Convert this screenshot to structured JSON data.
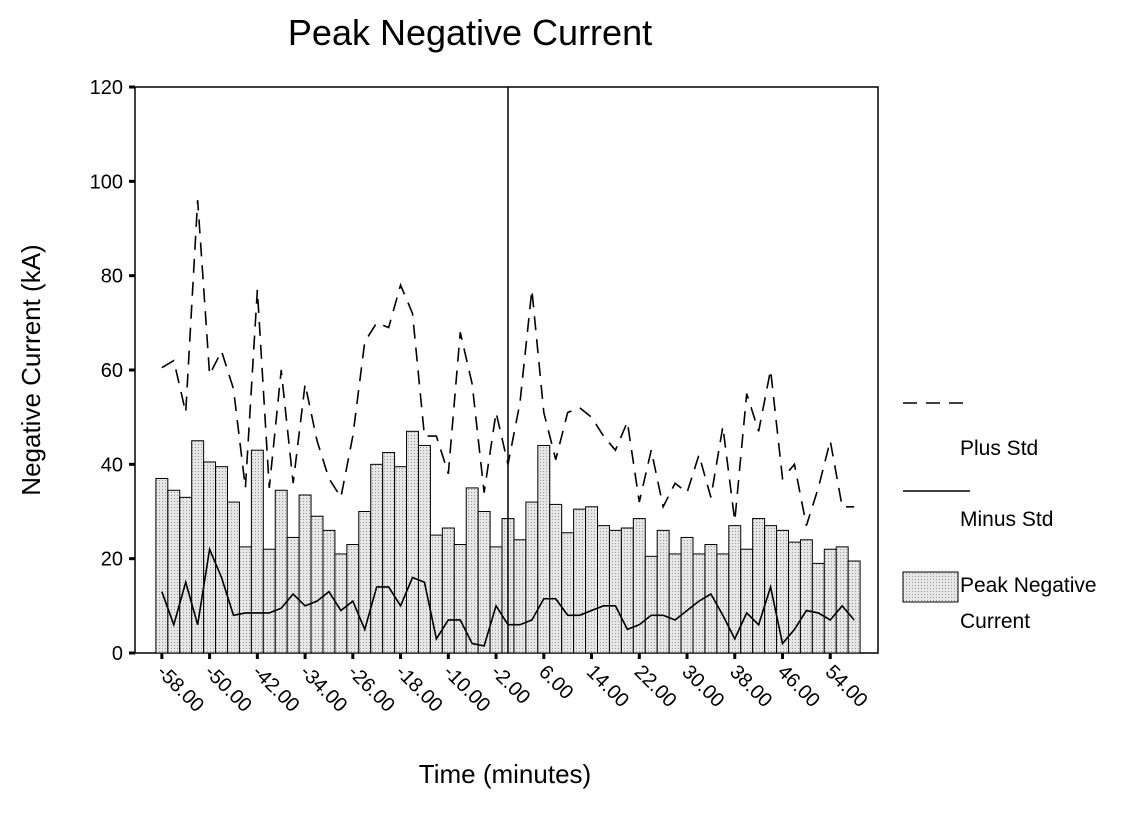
{
  "chart_data": {
    "type": "bar",
    "title": "Peak Negative Current",
    "xlabel": "Time (minutes)",
    "ylabel": "Negative Current (kA)",
    "x": [
      -58,
      -56,
      -54,
      -52,
      -50,
      -48,
      -46,
      -44,
      -42,
      -40,
      -38,
      -36,
      -34,
      -32,
      -30,
      -28,
      -26,
      -24,
      -22,
      -20,
      -18,
      -16,
      -14,
      -12,
      -10,
      -8,
      -6,
      -4,
      -2,
      0,
      2,
      4,
      6,
      8,
      10,
      12,
      14,
      16,
      18,
      20,
      22,
      24,
      26,
      28,
      30,
      32,
      34,
      36,
      38,
      40,
      42,
      44,
      46,
      48,
      50,
      52,
      54,
      56,
      58
    ],
    "xlim": [
      -62.5,
      62
    ],
    "xticks": [
      {
        "value": -58,
        "label": "-58.00"
      },
      {
        "value": -50,
        "label": "-50.00"
      },
      {
        "value": -42,
        "label": "-42.00"
      },
      {
        "value": -34,
        "label": "-34.00"
      },
      {
        "value": -26,
        "label": "-26.00"
      },
      {
        "value": -18,
        "label": "-18.00"
      },
      {
        "value": -10,
        "label": "-10.00"
      },
      {
        "value": -2,
        "label": "-2.00"
      },
      {
        "value": 6,
        "label": "6.00"
      },
      {
        "value": 14,
        "label": "14.00"
      },
      {
        "value": 22,
        "label": "22.00"
      },
      {
        "value": 30,
        "label": "30.00"
      },
      {
        "value": 38,
        "label": "38.00"
      },
      {
        "value": 46,
        "label": "46.00"
      },
      {
        "value": 54,
        "label": "54.00"
      }
    ],
    "ylim": [
      0,
      120
    ],
    "yticks": [
      0,
      20,
      40,
      60,
      80,
      100,
      120
    ],
    "vline_x": 0,
    "series": [
      {
        "name": "Plus Std",
        "type": "line",
        "dash": true,
        "color": "#000000",
        "values": [
          60.5,
          62,
          51,
          96,
          59,
          64,
          56,
          35,
          77,
          35,
          60,
          36,
          57,
          45,
          37,
          33,
          46,
          66,
          70,
          69,
          78,
          72,
          46,
          46,
          38,
          68,
          57,
          34,
          51,
          40,
          53,
          77,
          51,
          41,
          51,
          52,
          50,
          46,
          43,
          49,
          32,
          43,
          31,
          36,
          34,
          42,
          33,
          48,
          28,
          55,
          47,
          60,
          37,
          40,
          27,
          35,
          45,
          31,
          31
        ]
      },
      {
        "name": "Minus Std",
        "type": "line",
        "dash": false,
        "color": "#000000",
        "values": [
          13,
          6,
          15,
          6,
          22,
          16,
          8,
          8.5,
          8.5,
          8.5,
          9.5,
          12.5,
          10,
          11,
          13,
          9,
          11,
          5,
          14,
          14,
          10,
          16,
          15,
          3,
          7,
          7,
          2,
          1.5,
          10,
          6,
          6,
          7,
          11.5,
          11.5,
          8,
          8,
          9,
          10,
          10,
          5,
          6,
          8,
          8,
          7,
          9,
          11,
          12.5,
          8,
          3,
          8.5,
          6,
          14,
          2,
          5,
          9,
          8.5,
          7,
          10,
          7
        ]
      },
      {
        "name": "Peak Negative Current",
        "type": "bar",
        "color": "#d9d9d9",
        "values": [
          37,
          34.5,
          33,
          45,
          40.5,
          39.5,
          32,
          22.5,
          43,
          22,
          34.5,
          24.5,
          33.5,
          29,
          26,
          21,
          23,
          30,
          40,
          42.5,
          39.5,
          47,
          44,
          25,
          26.5,
          23,
          35,
          30,
          22.5,
          28.5,
          24,
          32,
          44,
          31.5,
          25.5,
          30.5,
          31,
          27,
          26,
          26.5,
          28.5,
          20.5,
          26,
          21,
          24.5,
          21,
          23,
          21,
          27,
          22,
          28.5,
          27,
          26,
          23.5,
          24,
          19,
          22,
          22.5,
          19.5
        ]
      }
    ]
  }
}
